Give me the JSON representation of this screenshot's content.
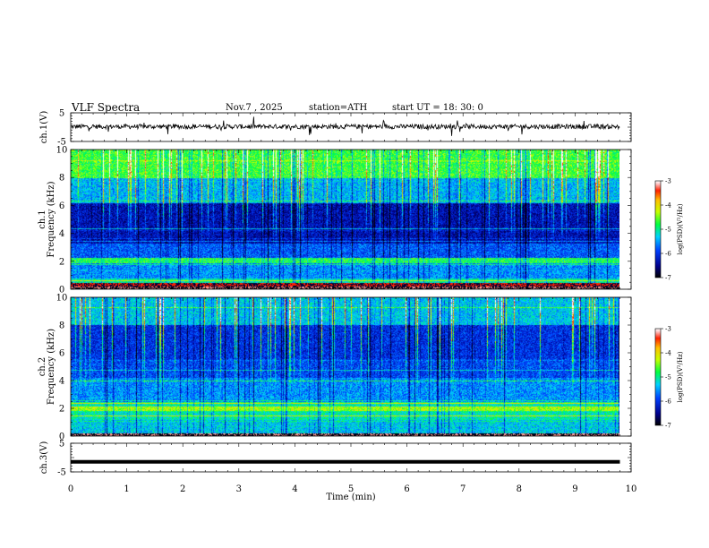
{
  "header": {
    "title": "VLF  Spectra",
    "date": "Nov.7  , 2025",
    "station": "station=ATH",
    "start_ut": "start  UT  =   18: 30: 0"
  },
  "chart_data": [
    {
      "type": "line",
      "name": "ch1-waveform",
      "ylabel": "ch.1(V)",
      "yticks": [
        5,
        -5
      ],
      "ylim": [
        -5,
        5
      ],
      "xlim": [
        0,
        10
      ],
      "description_level": 0.2,
      "x_end": 9.8
    },
    {
      "type": "heatmap",
      "name": "ch1-spectrogram",
      "ylabel": "ch.1  Frequency  (kHz)",
      "yticks": [
        0,
        2,
        4,
        6,
        8,
        10
      ],
      "ylim": [
        0,
        10
      ],
      "xlim": [
        0,
        10
      ],
      "x_end": 9.8,
      "colorbar": {
        "label": "log(PSD)(V²/Hz)",
        "ticks": [
          -3,
          -4,
          -5,
          -6,
          -7
        ],
        "range": [
          -7,
          -3
        ]
      }
    },
    {
      "type": "heatmap",
      "name": "ch2-spectrogram",
      "ylabel": "ch.2  Frequency  (kHz)",
      "yticks": [
        0,
        2,
        4,
        6,
        8,
        10
      ],
      "ylim": [
        0,
        10
      ],
      "xlim": [
        0,
        10
      ],
      "x_end": 9.8,
      "colorbar": {
        "label": "log(PSD)(V²/Hz)",
        "ticks": [
          -3,
          -4,
          -5,
          -6,
          -7
        ],
        "range": [
          -7,
          -3
        ]
      }
    },
    {
      "type": "line",
      "name": "ch3-waveform",
      "ylabel": "ch.3(V)",
      "yticks": [
        5,
        -5
      ],
      "ylim": [
        -5,
        5
      ],
      "xlim": [
        0,
        10
      ],
      "level": -1.5,
      "x_end": 9.8,
      "xlabel": "Time  (min)",
      "xticks": [
        0,
        1,
        2,
        3,
        4,
        5,
        6,
        7,
        8,
        9,
        10
      ]
    }
  ]
}
